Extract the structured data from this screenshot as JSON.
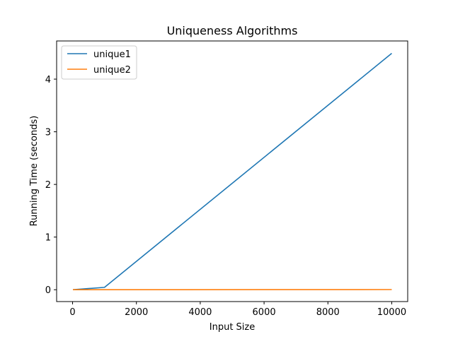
{
  "chart_data": {
    "type": "line",
    "title": "Uniqueness Algorithms",
    "xlabel": "Input Size",
    "ylabel": "Running Time (seconds)",
    "xlim": [
      -500,
      10500
    ],
    "ylim": [
      -0.225,
      4.725
    ],
    "xticks": [
      0,
      2000,
      4000,
      6000,
      8000,
      10000
    ],
    "yticks": [
      0,
      1,
      2,
      3,
      4
    ],
    "grid": false,
    "legend_position": "top-left",
    "series": [
      {
        "name": "unique1",
        "color": "#1f77b4",
        "x": [
          10,
          1000,
          10000
        ],
        "y": [
          0.0,
          0.045,
          4.49
        ]
      },
      {
        "name": "unique2",
        "color": "#ff7f0e",
        "x": [
          10,
          1000,
          10000
        ],
        "y": [
          0.0,
          0.0,
          0.003
        ]
      }
    ]
  }
}
